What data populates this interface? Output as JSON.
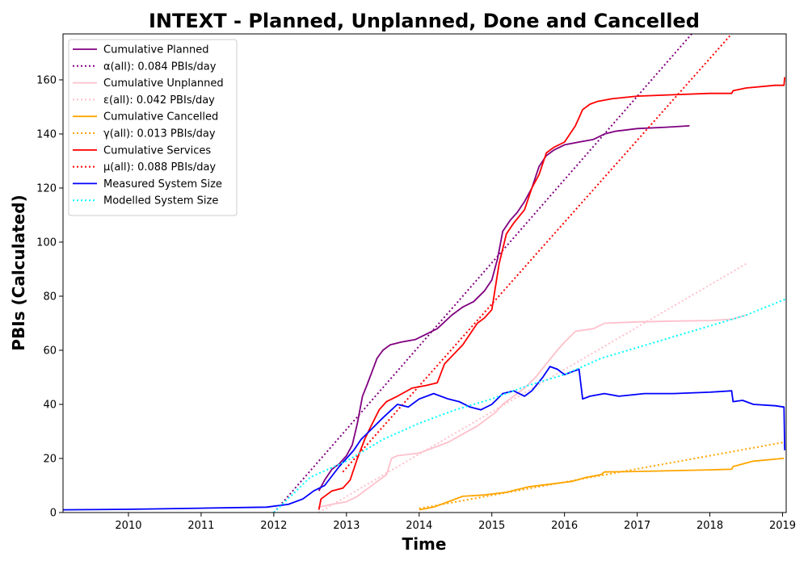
{
  "chart_data": {
    "type": "line",
    "title": "INTEXT - Planned, Unplanned, Done  and Cancelled",
    "xlabel": "Time",
    "ylabel": "PBIs (Calculated)",
    "xlim": [
      2009.1,
      2019.05
    ],
    "ylim": [
      0,
      177
    ],
    "xticks": [
      "2010",
      "2011",
      "2012",
      "2013",
      "2014",
      "2015",
      "2016",
      "2017",
      "2018",
      "2019"
    ],
    "yticks": [
      "0",
      "20",
      "40",
      "60",
      "80",
      "100",
      "120",
      "140",
      "160"
    ],
    "grid": false,
    "legend_position": "top-left",
    "series": [
      {
        "name": "Cumulative Planned",
        "color": "#800080",
        "style": "solid",
        "x": [
          2012.62,
          2012.7,
          2012.8,
          2012.9,
          2013.0,
          2013.08,
          2013.15,
          2013.22,
          2013.28,
          2013.35,
          2013.42,
          2013.5,
          2013.6,
          2013.75,
          2013.95,
          2014.1,
          2014.25,
          2014.45,
          2014.6,
          2014.75,
          2014.9,
          2015.0,
          2015.08,
          2015.15,
          2015.25,
          2015.35,
          2015.45,
          2015.55,
          2015.65,
          2015.75,
          2015.85,
          2016.0,
          2016.2,
          2016.4,
          2016.55,
          2016.7,
          2017.0,
          2017.4,
          2017.72
        ],
        "y": [
          8,
          12,
          16,
          18,
          21,
          25,
          33,
          43,
          47,
          52,
          57,
          60,
          62,
          63,
          64,
          66,
          68,
          73,
          76,
          78,
          82,
          86,
          94,
          104,
          108,
          111,
          115,
          120,
          128,
          132,
          134,
          136,
          137,
          138,
          140,
          141,
          142,
          142.5,
          143
        ]
      },
      {
        "name": "α(all): 0.084 PBIs/day",
        "color": "#800080",
        "style": "dotted",
        "x": [
          2012.0,
          2017.75
        ],
        "y": [
          0,
          177
        ]
      },
      {
        "name": "Cumulative Unplanned",
        "color": "#ffc0cb",
        "style": "solid",
        "x": [
          2012.62,
          2012.8,
          2013.0,
          2013.15,
          2013.3,
          2013.45,
          2013.55,
          2013.62,
          2013.7,
          2014.0,
          2014.2,
          2014.4,
          2014.6,
          2014.8,
          2014.95,
          2015.05,
          2015.15,
          2015.3,
          2015.45,
          2015.6,
          2015.75,
          2015.9,
          2016.0,
          2016.15,
          2016.4,
          2016.55,
          2017.0,
          2017.5,
          2018.0,
          2018.3,
          2018.5
        ],
        "y": [
          2,
          3,
          4,
          6,
          9,
          12,
          14,
          20,
          21,
          22,
          24,
          26,
          29,
          32,
          35,
          37,
          40,
          43,
          46,
          50,
          55,
          60,
          63,
          67,
          68,
          70,
          70.5,
          70.8,
          71,
          71.5,
          73
        ]
      },
      {
        "name": "ε(all): 0.042 PBIs/day",
        "color": "#ffc0cb",
        "style": "dotted",
        "x": [
          2012.62,
          2018.5
        ],
        "y": [
          0,
          92
        ]
      },
      {
        "name": "Cumulative Cancelled",
        "color": "#ffa500",
        "style": "solid",
        "x": [
          2014.0,
          2014.2,
          2014.4,
          2014.6,
          2014.9,
          2015.2,
          2015.5,
          2015.8,
          2016.1,
          2016.3,
          2016.5,
          2016.55,
          2017.0,
          2017.5,
          2018.0,
          2018.3,
          2018.32,
          2018.6,
          2019.0,
          2019.02
        ],
        "y": [
          1,
          2,
          4,
          6,
          6.5,
          7.5,
          9.5,
          10.5,
          11.5,
          13,
          14,
          15,
          15.2,
          15.5,
          15.8,
          16,
          17,
          19,
          20,
          20
        ]
      },
      {
        "name": "γ(all): 0.013 PBIs/day",
        "color": "#ffa500",
        "style": "dotted",
        "x": [
          2014.0,
          2019.02
        ],
        "y": [
          1.5,
          26
        ]
      },
      {
        "name": "Cumulative Services",
        "color": "#ff0000",
        "style": "solid",
        "x": [
          2012.62,
          2012.65,
          2012.8,
          2012.95,
          2013.05,
          2013.15,
          2013.25,
          2013.32,
          2013.45,
          2013.55,
          2013.7,
          2013.9,
          2014.1,
          2014.25,
          2014.35,
          2014.6,
          2014.8,
          2014.9,
          2015.0,
          2015.1,
          2015.2,
          2015.3,
          2015.45,
          2015.55,
          2015.65,
          2015.75,
          2015.85,
          2016.0,
          2016.15,
          2016.25,
          2016.35,
          2016.45,
          2016.65,
          2017.0,
          2017.5,
          2018.0,
          2018.3,
          2018.32,
          2018.5,
          2018.9,
          2019.02,
          2019.03
        ],
        "y": [
          1,
          5,
          8,
          9,
          12,
          20,
          27,
          31,
          38,
          41,
          43,
          46,
          47,
          48,
          55,
          62,
          70,
          72,
          75,
          92,
          103,
          107,
          112,
          120,
          125,
          133,
          135,
          137,
          143,
          149,
          151,
          152,
          153,
          154,
          154.5,
          155,
          155,
          156,
          157,
          158,
          158,
          161
        ]
      },
      {
        "name": "μ(all): 0.088 PBIs/day",
        "color": "#ff0000",
        "style": "dotted",
        "x": [
          2012.95,
          2018.3
        ],
        "y": [
          15,
          177
        ]
      },
      {
        "name": "Measured System Size",
        "color": "#0000ff",
        "style": "solid",
        "x": [
          2009.1,
          2010.0,
          2011.0,
          2011.9,
          2012.2,
          2012.4,
          2012.55,
          2012.7,
          2012.9,
          2013.0,
          2013.1,
          2013.2,
          2013.35,
          2013.5,
          2013.7,
          2013.85,
          2014.0,
          2014.2,
          2014.4,
          2014.55,
          2014.7,
          2014.85,
          2015.0,
          2015.15,
          2015.3,
          2015.45,
          2015.55,
          2015.7,
          2015.8,
          2015.9,
          2016.0,
          2016.1,
          2016.2,
          2016.25,
          2016.35,
          2016.55,
          2016.75,
          2017.1,
          2017.5,
          2018.0,
          2018.3,
          2018.32,
          2018.45,
          2018.6,
          2018.9,
          2019.02,
          2019.03
        ],
        "y": [
          1,
          1.2,
          1.6,
          2,
          3,
          5,
          8,
          10,
          17,
          20,
          23,
          27,
          31,
          35,
          40,
          39,
          42,
          44,
          42,
          41,
          39,
          38,
          40,
          44,
          45,
          43,
          45,
          50,
          54,
          53,
          51,
          52,
          53,
          42,
          43,
          44,
          43,
          44,
          44,
          44.5,
          45,
          41,
          41.5,
          40,
          39.5,
          39,
          23
        ]
      },
      {
        "name": "Modelled System Size",
        "color": "#00ffff",
        "style": "dotted",
        "x": [
          2012.0,
          2012.5,
          2013.0,
          2013.5,
          2014.0,
          2014.5,
          2015.0,
          2015.5,
          2016.0,
          2016.5,
          2017.0,
          2017.5,
          2018.0,
          2018.5,
          2019.05
        ],
        "y": [
          0,
          13,
          19,
          27,
          33,
          38,
          42,
          47,
          51,
          57,
          61,
          65,
          69,
          73,
          79
        ]
      }
    ]
  }
}
